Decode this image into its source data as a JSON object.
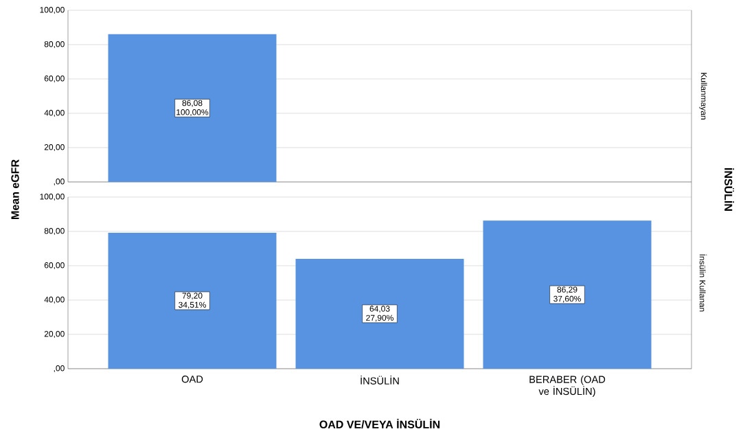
{
  "chart_data": [
    {
      "type": "bar",
      "ylabel": "Mean eGFR",
      "y2label": "Kullanmayan",
      "annotations": [
        "İNSÜLİN"
      ],
      "categories": [
        null,
        null,
        null
      ],
      "values": [
        86.08,
        null,
        null
      ],
      "value_labels": [
        "86,08 100,00%",
        null,
        null
      ],
      "color": "#5793e1",
      "ylim": [
        0,
        100
      ],
      "yticks": [
        {
          "value": 0,
          "label": ",00"
        },
        {
          "value": 20,
          "label": "20,00"
        },
        {
          "value": 40,
          "label": "40,00"
        },
        {
          "value": 60,
          "label": "60,00"
        },
        {
          "value": 80,
          "label": "80,00"
        },
        {
          "value": 100,
          "label": "100,00"
        }
      ],
      "grid": "y",
      "tick_labels": "y"
    },
    {
      "type": "bar",
      "xlabel": "OAD VE/VEYA İNSÜLİN",
      "y2label": "İnsülin Kullanan",
      "categories": [
        "OAD",
        "İNSÜLİN",
        "BERABER (OAD ve İNSÜLİN)"
      ],
      "values": [
        79.2,
        64.03,
        86.29
      ],
      "value_labels": [
        "79,20 34,51%",
        "64,03 27,90%",
        "86,29 37,60%"
      ],
      "color": "#5793e1",
      "ylim": [
        0,
        100
      ],
      "yticks": [
        {
          "value": 0,
          "label": ",00"
        },
        {
          "value": 20,
          "label": "20,00"
        },
        {
          "value": 40,
          "label": "40,00"
        },
        {
          "value": 60,
          "label": "60,00"
        },
        {
          "value": 80,
          "label": "80,00"
        },
        {
          "value": 100,
          "label": "100,00"
        }
      ],
      "grid": "y"
    }
  ]
}
